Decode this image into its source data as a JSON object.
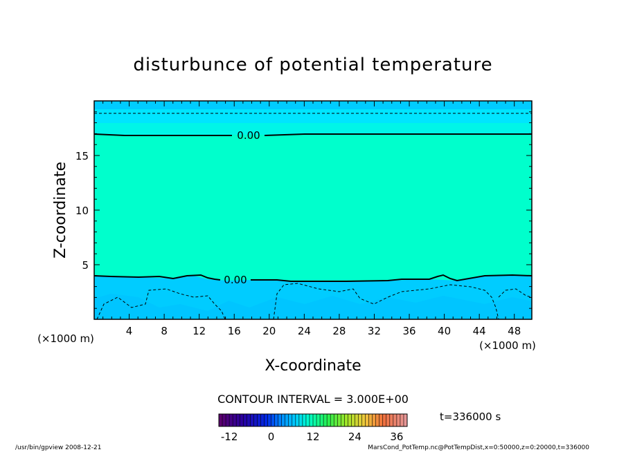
{
  "chart_data": {
    "type": "heatmap",
    "title": "disturbunce of potential temperature",
    "xlabel": "X-coordinate",
    "ylabel": "Z-coordinate",
    "x_unit": "(×1000 m)",
    "x_unit_right": "(×1000 m)",
    "xlim": [
      0,
      50
    ],
    "ylim": [
      0,
      20
    ],
    "x_ticks": [
      "4",
      "8",
      "12",
      "16",
      "20",
      "24",
      "28",
      "32",
      "36",
      "40",
      "44",
      "48"
    ],
    "y_ticks": [
      "5",
      "10",
      "15"
    ],
    "contour_interval": "CONTOUR INTERVAL = 3.000E+00",
    "contour_labels": [
      "0.00",
      "0.00"
    ],
    "zero_contours_km": [
      17.0,
      4.0
    ],
    "time_label": "t=336000 s",
    "colorbar": {
      "ticks": [
        "-12",
        "0",
        "12",
        "24",
        "36"
      ],
      "range": [
        -15,
        39
      ]
    },
    "footer_left": "/usr/bin/gpview   2008-12-21",
    "footer_right": "MarsCond_PotTemp.nc@PotTempDist,x=0:50000,z=0:20000,t=336000",
    "colors": {
      "upper": "#00ffcc",
      "lower": "#00ccff",
      "top_band": "#00e5ff"
    }
  }
}
